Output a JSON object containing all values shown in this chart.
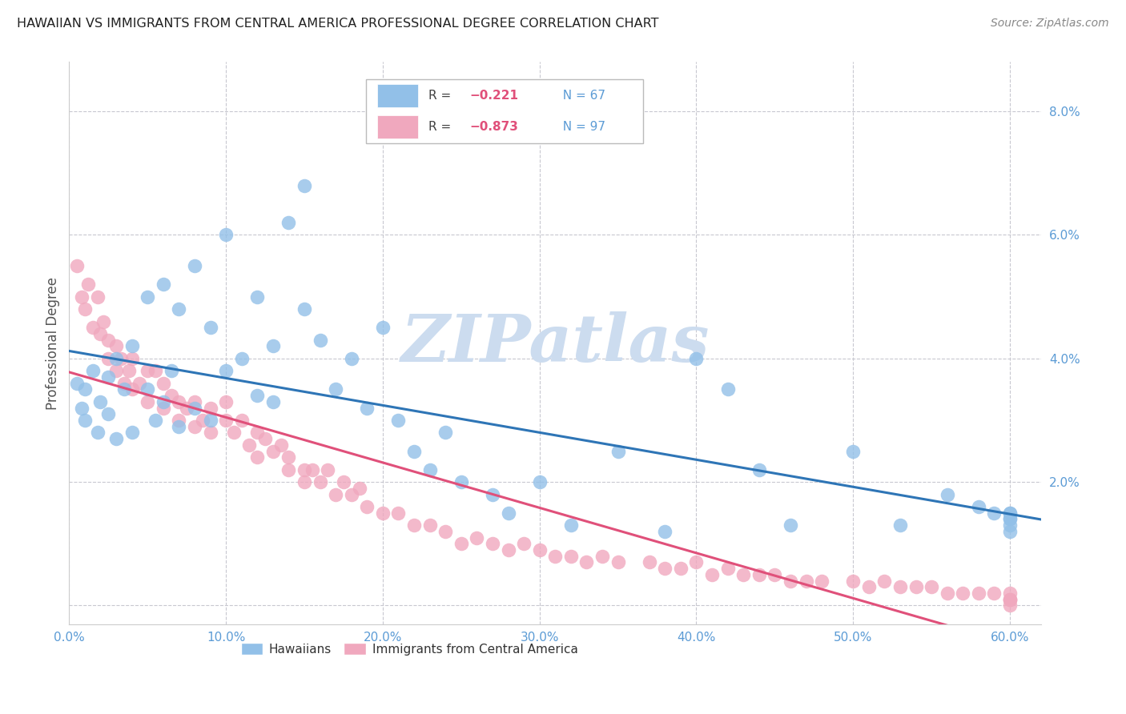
{
  "title": "HAWAIIAN VS IMMIGRANTS FROM CENTRAL AMERICA PROFESSIONAL DEGREE CORRELATION CHART",
  "source": "Source: ZipAtlas.com",
  "ylabel": "Professional Degree",
  "xlim": [
    0.0,
    0.62
  ],
  "ylim": [
    -0.003,
    0.088
  ],
  "xticks": [
    0.0,
    0.1,
    0.2,
    0.3,
    0.4,
    0.5,
    0.6
  ],
  "xticklabels": [
    "0.0%",
    "10.0%",
    "20.0%",
    "30.0%",
    "40.0%",
    "50.0%",
    "60.0%"
  ],
  "yticks": [
    0.0,
    0.02,
    0.04,
    0.06,
    0.08
  ],
  "yticklabels": [
    "",
    "2.0%",
    "4.0%",
    "6.0%",
    "8.0%"
  ],
  "background_color": "#ffffff",
  "grid_color": "#c8c8d0",
  "axis_color": "#5b9bd5",
  "watermark": "ZIPatlas",
  "watermark_color": "#ccdcef",
  "blue_color": "#92c0e8",
  "pink_color": "#f0a8be",
  "blue_line_color": "#2e75b6",
  "pink_line_color": "#e0507a",
  "blue_r": "-0.221",
  "blue_n": "67",
  "pink_r": "-0.873",
  "pink_n": "97",
  "r_label_color": "#e0507a",
  "n_label_color": "#5b9bd5",
  "hawaiians_x": [
    0.005,
    0.008,
    0.01,
    0.01,
    0.015,
    0.018,
    0.02,
    0.025,
    0.025,
    0.03,
    0.03,
    0.035,
    0.04,
    0.04,
    0.05,
    0.05,
    0.055,
    0.06,
    0.06,
    0.065,
    0.07,
    0.07,
    0.08,
    0.08,
    0.09,
    0.09,
    0.1,
    0.1,
    0.11,
    0.12,
    0.12,
    0.13,
    0.13,
    0.14,
    0.15,
    0.15,
    0.16,
    0.17,
    0.18,
    0.19,
    0.2,
    0.21,
    0.22,
    0.23,
    0.24,
    0.25,
    0.27,
    0.28,
    0.3,
    0.32,
    0.35,
    0.38,
    0.4,
    0.42,
    0.44,
    0.46,
    0.5,
    0.53,
    0.56,
    0.58,
    0.59,
    0.6,
    0.6,
    0.6,
    0.6,
    0.6,
    0.6
  ],
  "hawaiians_y": [
    0.036,
    0.032,
    0.035,
    0.03,
    0.038,
    0.028,
    0.033,
    0.037,
    0.031,
    0.04,
    0.027,
    0.035,
    0.042,
    0.028,
    0.05,
    0.035,
    0.03,
    0.052,
    0.033,
    0.038,
    0.048,
    0.029,
    0.055,
    0.032,
    0.045,
    0.03,
    0.06,
    0.038,
    0.04,
    0.05,
    0.034,
    0.042,
    0.033,
    0.062,
    0.068,
    0.048,
    0.043,
    0.035,
    0.04,
    0.032,
    0.045,
    0.03,
    0.025,
    0.022,
    0.028,
    0.02,
    0.018,
    0.015,
    0.02,
    0.013,
    0.025,
    0.012,
    0.04,
    0.035,
    0.022,
    0.013,
    0.025,
    0.013,
    0.018,
    0.016,
    0.015,
    0.015,
    0.014,
    0.015,
    0.014,
    0.013,
    0.012
  ],
  "immigrants_x": [
    0.005,
    0.008,
    0.01,
    0.012,
    0.015,
    0.018,
    0.02,
    0.022,
    0.025,
    0.025,
    0.03,
    0.03,
    0.033,
    0.035,
    0.038,
    0.04,
    0.04,
    0.045,
    0.05,
    0.05,
    0.055,
    0.06,
    0.06,
    0.065,
    0.07,
    0.07,
    0.075,
    0.08,
    0.08,
    0.085,
    0.09,
    0.09,
    0.1,
    0.1,
    0.105,
    0.11,
    0.115,
    0.12,
    0.12,
    0.125,
    0.13,
    0.135,
    0.14,
    0.14,
    0.15,
    0.15,
    0.155,
    0.16,
    0.165,
    0.17,
    0.175,
    0.18,
    0.185,
    0.19,
    0.2,
    0.21,
    0.22,
    0.23,
    0.24,
    0.25,
    0.26,
    0.27,
    0.28,
    0.29,
    0.3,
    0.31,
    0.32,
    0.33,
    0.34,
    0.35,
    0.37,
    0.38,
    0.39,
    0.4,
    0.41,
    0.42,
    0.43,
    0.44,
    0.45,
    0.46,
    0.47,
    0.48,
    0.5,
    0.51,
    0.52,
    0.53,
    0.54,
    0.55,
    0.56,
    0.57,
    0.58,
    0.59,
    0.6,
    0.6,
    0.6,
    0.6,
    0.6
  ],
  "immigrants_y": [
    0.055,
    0.05,
    0.048,
    0.052,
    0.045,
    0.05,
    0.044,
    0.046,
    0.043,
    0.04,
    0.042,
    0.038,
    0.04,
    0.036,
    0.038,
    0.04,
    0.035,
    0.036,
    0.038,
    0.033,
    0.038,
    0.036,
    0.032,
    0.034,
    0.033,
    0.03,
    0.032,
    0.033,
    0.029,
    0.03,
    0.032,
    0.028,
    0.033,
    0.03,
    0.028,
    0.03,
    0.026,
    0.028,
    0.024,
    0.027,
    0.025,
    0.026,
    0.024,
    0.022,
    0.022,
    0.02,
    0.022,
    0.02,
    0.022,
    0.018,
    0.02,
    0.018,
    0.019,
    0.016,
    0.015,
    0.015,
    0.013,
    0.013,
    0.012,
    0.01,
    0.011,
    0.01,
    0.009,
    0.01,
    0.009,
    0.008,
    0.008,
    0.007,
    0.008,
    0.007,
    0.007,
    0.006,
    0.006,
    0.007,
    0.005,
    0.006,
    0.005,
    0.005,
    0.005,
    0.004,
    0.004,
    0.004,
    0.004,
    0.003,
    0.004,
    0.003,
    0.003,
    0.003,
    0.002,
    0.002,
    0.002,
    0.002,
    0.002,
    0.001,
    0.001,
    0.001,
    0.0
  ]
}
